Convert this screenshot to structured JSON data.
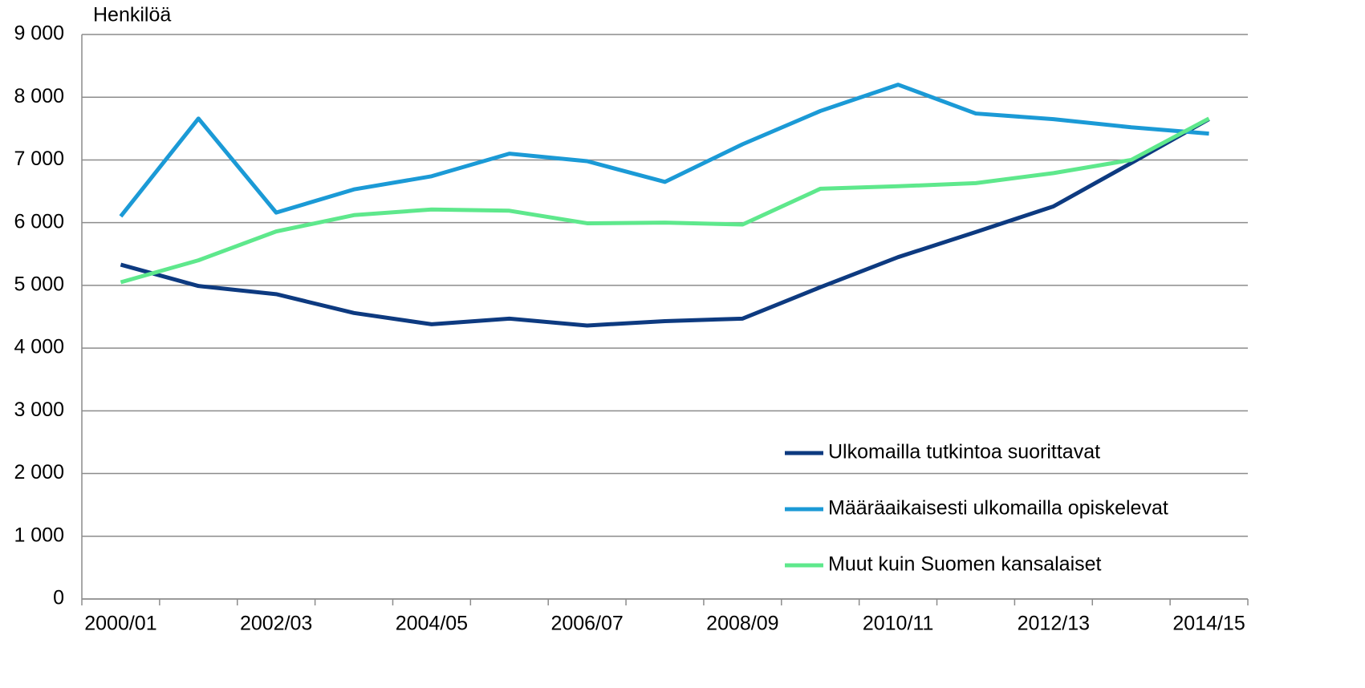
{
  "chart_data": {
    "type": "line",
    "y_label": "Henkilöä",
    "categories": [
      "2000/01",
      null,
      "2002/03",
      null,
      "2004/05",
      null,
      "2006/07",
      null,
      "2008/09",
      null,
      "2010/11",
      null,
      "2012/13",
      null,
      "2014/15"
    ],
    "series": [
      {
        "name": "Ulkomailla tutkintoa suorittavat",
        "color": "#0d3a80",
        "values": [
          5330,
          4990,
          4860,
          4560,
          4380,
          4470,
          4360,
          4430,
          4470,
          4970,
          5450,
          5850,
          6260,
          6950,
          7650
        ]
      },
      {
        "name": "Määräaikaisesti ulkomailla opiskelevat",
        "color": "#1b9ad6",
        "values": [
          6100,
          7660,
          6160,
          6530,
          6740,
          7100,
          6980,
          6650,
          7250,
          7780,
          8200,
          7740,
          7650,
          7520,
          7420
        ]
      },
      {
        "name": "Muut kuin Suomen kansalaiset",
        "color": "#5ee88c",
        "values": [
          5050,
          5400,
          5860,
          6120,
          6210,
          6190,
          5990,
          6000,
          5970,
          6540,
          6580,
          6630,
          6790,
          7000,
          7660
        ]
      }
    ],
    "ylim": [
      0,
      9000
    ],
    "yticks": [
      {
        "value": 0,
        "label": "0"
      },
      {
        "value": 1000,
        "label": "1 000"
      },
      {
        "value": 2000,
        "label": "2 000"
      },
      {
        "value": 3000,
        "label": "3 000"
      },
      {
        "value": 4000,
        "label": "4 000"
      },
      {
        "value": 5000,
        "label": "5 000"
      },
      {
        "value": 6000,
        "label": "6 000"
      },
      {
        "value": 7000,
        "label": "7 000"
      },
      {
        "value": 8000,
        "label": "8 000"
      },
      {
        "value": 9000,
        "label": "9 000"
      }
    ],
    "grid": true,
    "legend": "lower right"
  }
}
